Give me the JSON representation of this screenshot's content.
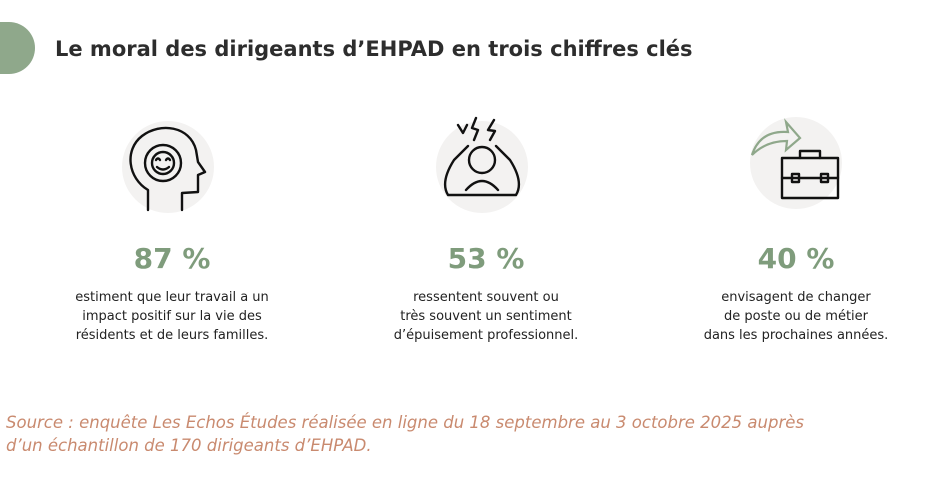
{
  "header": {
    "title": "Le moral des dirigeants d’EHPAD en trois chiffres clés"
  },
  "stats": [
    {
      "figure": "87 %",
      "lines": [
        "estiment que leur travail a un",
        "impact positif sur la vie des",
        "résidents et de leurs familles."
      ]
    },
    {
      "figure": "53 %",
      "lines": [
        "ressentent souvent ou",
        "très souvent un sentiment",
        "d’épuisement professionnel."
      ]
    },
    {
      "figure": "40 %",
      "lines": [
        "envisagent de changer",
        "de poste ou de métier",
        "dans les prochaines années."
      ]
    }
  ],
  "source": {
    "lines": [
      "Source : enquête Les Echos Études réalisée en ligne du 18 septembre au 3 octobre 2025 auprès",
      "d’un échantillon de 170 dirigeants d’EHPAD."
    ]
  }
}
